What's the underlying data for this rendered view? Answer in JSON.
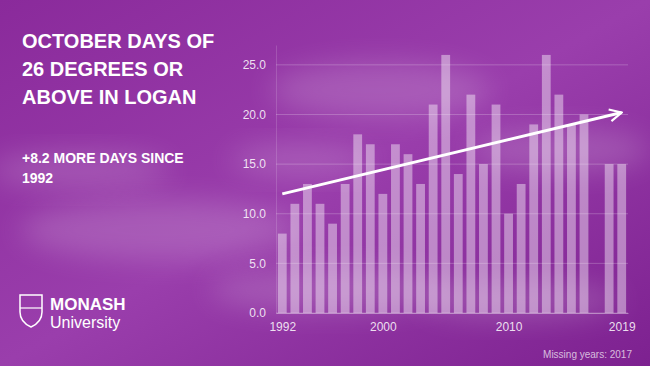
{
  "chart_data": {
    "type": "bar",
    "title": "OCTOBER DAYS OF 26 DEGREES OR ABOVE IN LOGAN",
    "subtitle": "+8.2 MORE DAYS SINCE 1992",
    "note": "Missing years: 2017",
    "logo": [
      "MONASH",
      "University"
    ],
    "x": [
      1992,
      1993,
      1994,
      1995,
      1996,
      1997,
      1998,
      1999,
      2000,
      2001,
      2002,
      2003,
      2004,
      2005,
      2006,
      2007,
      2008,
      2009,
      2010,
      2011,
      2012,
      2013,
      2014,
      2015,
      2016,
      2018,
      2019
    ],
    "values": [
      8,
      11,
      13,
      11,
      9,
      13,
      18,
      17,
      12,
      17,
      16,
      13,
      21,
      26,
      14,
      22,
      15,
      21,
      10,
      13,
      19,
      26,
      22,
      19,
      20,
      15,
      15
    ],
    "color": "#ffffff",
    "xlim": [
      1991.5,
      2019.5
    ],
    "xticks": [
      1992,
      2000,
      2010,
      2019
    ],
    "ylim": [
      0,
      27
    ],
    "yticks": [
      {
        "value": 0,
        "label": "0.0"
      },
      {
        "value": 5,
        "label": "5.0"
      },
      {
        "value": 10,
        "label": "10.0"
      },
      {
        "value": 15,
        "label": "15.0"
      },
      {
        "value": 20,
        "label": "20.0"
      },
      {
        "value": 25,
        "label": "25.0"
      }
    ],
    "grid": true,
    "trend": {
      "x": [
        1992,
        2019
      ],
      "values": [
        12,
        20.2
      ]
    }
  }
}
